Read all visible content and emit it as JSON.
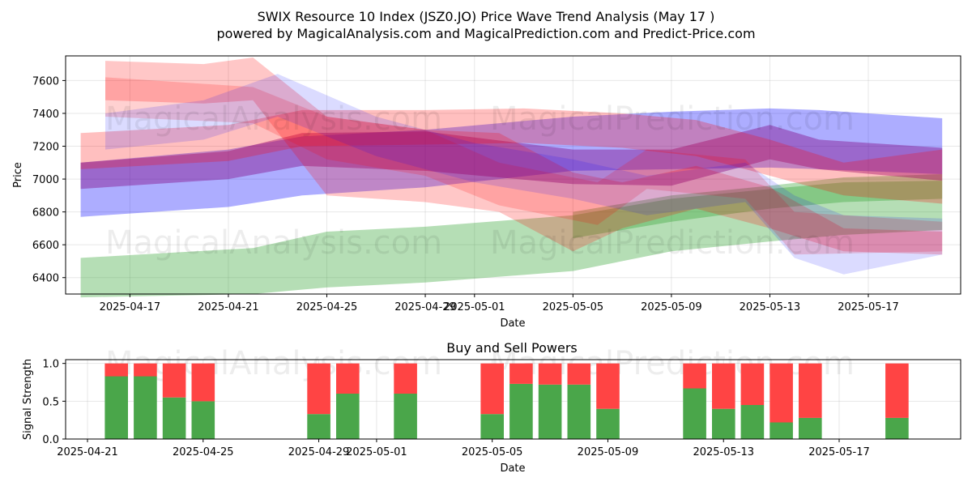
{
  "title_line1": "SWIX Resource 10 Index (JSZ0.JO) Price Wave Trend Analysis (May 17 )",
  "title_line2": "powered by MagicalAnalysis.com and MagicalPrediction.com and Predict-Price.com",
  "watermarks": [
    "MagicalAnalysis.com",
    "MagicalPrediction.com"
  ],
  "colors": {
    "green": "#2ca02c",
    "red": "#ff0000",
    "blue": "#0000ff",
    "purple": "#7f007f",
    "buy": "#4aa64a",
    "sell": "#ff4444"
  },
  "chart_data": [
    {
      "type": "area",
      "xlabel": "Date",
      "ylabel": "Price",
      "ylim": [
        6300,
        7750
      ],
      "xlim": [
        "2025-04-15",
        "2025-05-21"
      ],
      "grid": true,
      "x_ticks": [
        "2025-04-17",
        "2025-04-21",
        "2025-04-25",
        "2025-04-29",
        "2025-05-01",
        "2025-05-05",
        "2025-05-09",
        "2025-05-13",
        "2025-05-17"
      ],
      "y_ticks": [
        6400,
        6600,
        6800,
        7000,
        7200,
        7400,
        7600
      ],
      "bands": [
        {
          "color": "green",
          "opacity": 0.35,
          "x": [
            "2025-04-15",
            "2025-04-22",
            "2025-04-25",
            "2025-04-29",
            "2025-05-05",
            "2025-05-09",
            "2025-05-13",
            "2025-05-16",
            "2025-05-20"
          ],
          "upper": [
            6520,
            6580,
            6680,
            6710,
            6780,
            6880,
            6940,
            6980,
            6990
          ],
          "lower": [
            6280,
            6300,
            6340,
            6370,
            6440,
            6560,
            6620,
            6660,
            6690
          ]
        },
        {
          "color": "green",
          "opacity": 0.35,
          "x": [
            "2025-05-05",
            "2025-05-09",
            "2025-05-13",
            "2025-05-16",
            "2025-05-20"
          ],
          "upper": [
            6800,
            6900,
            6960,
            7010,
            7030
          ],
          "lower": [
            6640,
            6740,
            6820,
            6860,
            6880
          ]
        },
        {
          "color": "blue",
          "opacity": 0.32,
          "x": [
            "2025-04-15",
            "2025-04-21",
            "2025-04-24",
            "2025-04-29",
            "2025-05-05",
            "2025-05-09",
            "2025-05-13",
            "2025-05-15",
            "2025-05-20"
          ],
          "upper": [
            7100,
            7180,
            7260,
            7300,
            7380,
            7410,
            7430,
            7420,
            7370
          ],
          "lower": [
            6770,
            6830,
            6900,
            6950,
            7050,
            7060,
            7070,
            7060,
            7030
          ]
        },
        {
          "color": "purple",
          "opacity": 0.4,
          "x": [
            "2025-04-15",
            "2025-04-21",
            "2025-04-24",
            "2025-04-29",
            "2025-05-05",
            "2025-05-09",
            "2025-05-13",
            "2025-05-15",
            "2025-05-20"
          ],
          "upper": [
            7100,
            7170,
            7280,
            7290,
            7180,
            7180,
            7330,
            7240,
            7190
          ],
          "lower": [
            6940,
            7000,
            7080,
            7050,
            6970,
            6960,
            7120,
            7060,
            6990
          ]
        },
        {
          "color": "red",
          "opacity": 0.25,
          "x": [
            "2025-04-15",
            "2025-04-21",
            "2025-04-24",
            "2025-04-29",
            "2025-05-03",
            "2025-05-07",
            "2025-05-10",
            "2025-05-13",
            "2025-05-16",
            "2025-05-20"
          ],
          "upper": [
            7280,
            7330,
            7420,
            7420,
            7430,
            7400,
            7360,
            7240,
            7100,
            7180
          ],
          "lower": [
            7060,
            7110,
            7200,
            7210,
            7220,
            7190,
            7140,
            7020,
            6900,
            6850
          ]
        },
        {
          "color": "red",
          "opacity": 0.22,
          "x": [
            "2025-04-16",
            "2025-04-20",
            "2025-04-22",
            "2025-04-25",
            "2025-04-29",
            "2025-05-02",
            "2025-05-05",
            "2025-05-07",
            "2025-05-10",
            "2025-05-13",
            "2025-05-16",
            "2025-05-20"
          ],
          "upper": [
            7720,
            7700,
            7740,
            7380,
            7300,
            7280,
            7040,
            6980,
            7080,
            6950,
            6700,
            6680
          ],
          "lower": [
            7480,
            7460,
            7480,
            6900,
            6860,
            6800,
            6560,
            6700,
            6820,
            6700,
            6560,
            6540
          ]
        },
        {
          "color": "red",
          "opacity": 0.18,
          "x": [
            "2025-04-16",
            "2025-04-22",
            "2025-04-25",
            "2025-04-29",
            "2025-05-02",
            "2025-05-06",
            "2025-05-08",
            "2025-05-12",
            "2025-05-14",
            "2025-05-20"
          ],
          "upper": [
            7620,
            7560,
            7380,
            7300,
            7100,
            6980,
            7180,
            7120,
            6800,
            6740
          ],
          "lower": [
            7380,
            7340,
            7120,
            7020,
            6840,
            6720,
            6940,
            6880,
            6540,
            6560
          ]
        },
        {
          "color": "blue",
          "opacity": 0.14,
          "x": [
            "2025-04-16",
            "2025-04-20",
            "2025-04-23",
            "2025-04-27",
            "2025-05-01",
            "2025-05-05",
            "2025-05-08",
            "2025-05-12",
            "2025-05-14",
            "2025-05-16",
            "2025-05-20"
          ],
          "upper": [
            7400,
            7480,
            7640,
            7380,
            7220,
            7120,
            7020,
            7100,
            6900,
            6780,
            6760
          ],
          "lower": [
            7180,
            7240,
            7380,
            7140,
            6980,
            6880,
            6780,
            6860,
            6520,
            6420,
            6540
          ]
        }
      ]
    },
    {
      "type": "bar",
      "title": "Buy and Sell Powers",
      "xlabel": "Date",
      "ylabel": "Signal Strength",
      "ylim": [
        0,
        1.05
      ],
      "y_ticks": [
        0.0,
        0.5,
        1.0
      ],
      "x_ticks": [
        "2025-04-21",
        "2025-04-25",
        "2025-04-29",
        "2025-05-01",
        "2025-05-05",
        "2025-05-09",
        "2025-05-13",
        "2025-05-17"
      ],
      "dates": [
        "2025-04-22",
        "2025-04-23",
        "2025-04-24",
        "2025-04-25",
        "2025-04-29",
        "2025-04-30",
        "2025-05-02",
        "2025-05-05",
        "2025-05-06",
        "2025-05-07",
        "2025-05-08",
        "2025-05-09",
        "2025-05-12",
        "2025-05-13",
        "2025-05-14",
        "2025-05-15",
        "2025-05-16",
        "2025-05-19"
      ],
      "buy": [
        0.83,
        0.83,
        0.55,
        0.5,
        0.33,
        0.6,
        0.6,
        0.33,
        0.73,
        0.72,
        0.72,
        0.4,
        0.67,
        0.4,
        0.45,
        0.22,
        0.28,
        0.28
      ],
      "sell": [
        0.17,
        0.17,
        0.45,
        0.5,
        0.67,
        0.4,
        0.4,
        0.67,
        0.27,
        0.28,
        0.28,
        0.6,
        0.33,
        0.6,
        0.55,
        0.78,
        0.72,
        0.72
      ]
    }
  ]
}
